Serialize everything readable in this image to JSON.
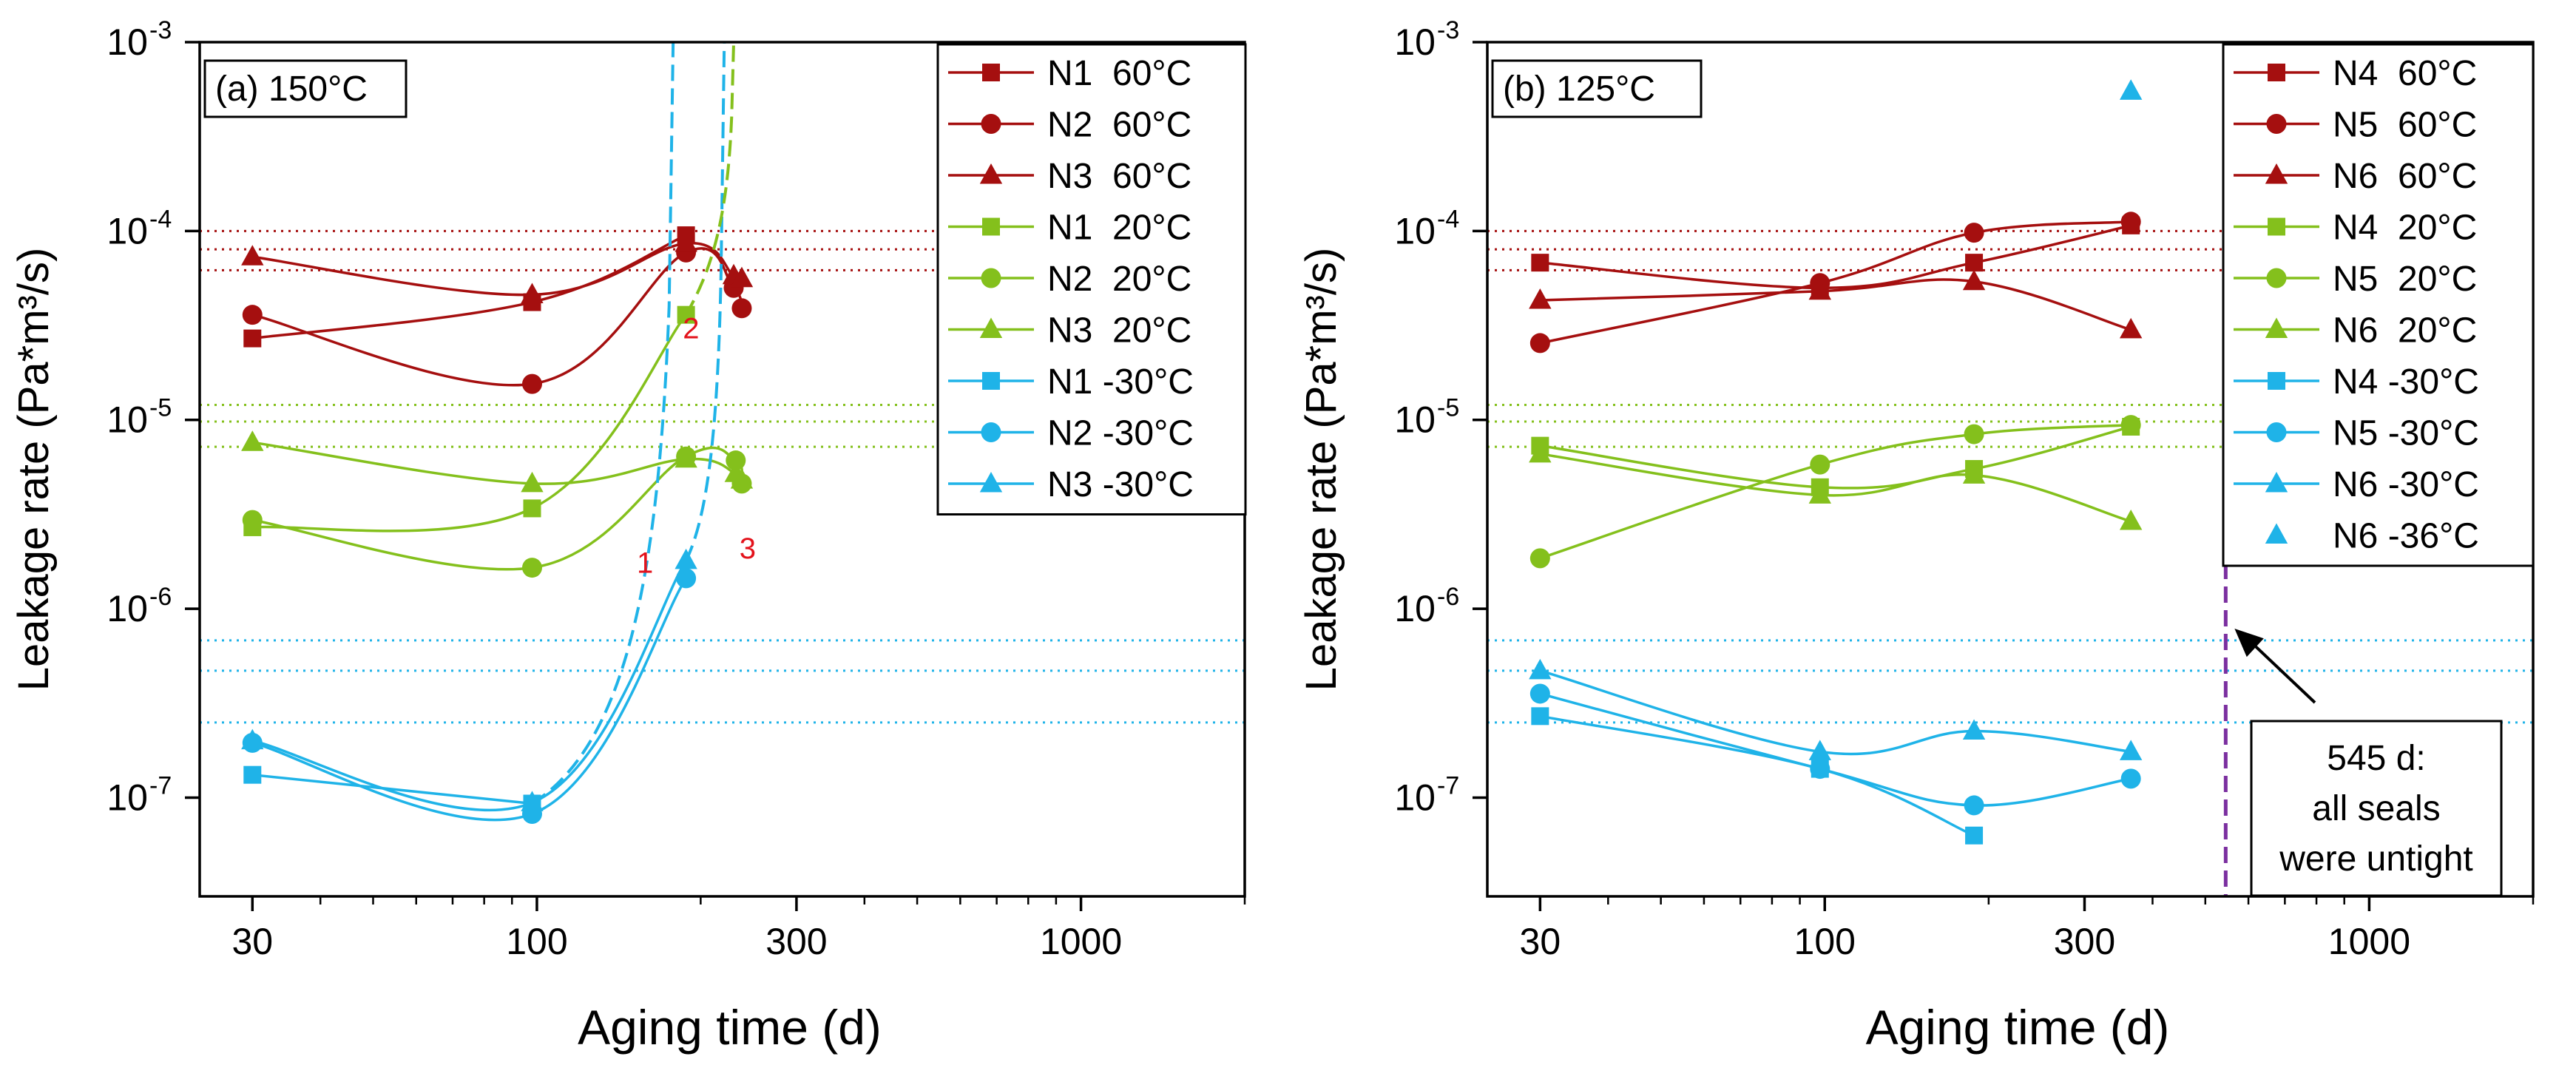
{
  "colors": {
    "red": "#a50f0f",
    "green": "#84c01c",
    "blue": "#1fb3e8",
    "purple": "#7b2fa0",
    "axis": "#000000"
  },
  "chart_data": [
    {
      "type": "scatter",
      "panel_label": "(a) 150°C",
      "xlabel": "Aging time (d)",
      "ylabel": "Leakage rate (Pa*m³/s)",
      "xscale": "log",
      "yscale": "log",
      "xlim": [
        24,
        2000
      ],
      "ylim": [
        3e-08,
        0.001
      ],
      "xticks": [
        30,
        100,
        300,
        1000
      ],
      "yticks": [
        {
          "exp": "-7",
          "value": 1e-07
        },
        {
          "exp": "-6",
          "value": 1e-06
        },
        {
          "exp": "-5",
          "value": 1e-05
        },
        {
          "exp": "-4",
          "value": 0.0001
        },
        {
          "exp": "-3",
          "value": 0.001
        }
      ],
      "tick_base": "10",
      "ref_lines": [
        {
          "color": "red",
          "values": [
            0.0001,
            8e-05,
            6.2e-05
          ]
        },
        {
          "color": "green",
          "values": [
            1.2e-05,
            9.8e-06,
            7.2e-06
          ]
        },
        {
          "color": "blue",
          "values": [
            6.8e-07,
            4.7e-07,
            2.5e-07
          ]
        }
      ],
      "annotations": [
        {
          "text": "1",
          "x": 158,
          "y": 1.55e-06
        },
        {
          "text": "2",
          "x": 192,
          "y": 2.7e-05
        },
        {
          "text": "3",
          "x": 244,
          "y": 1.85e-06
        }
      ],
      "series": [
        {
          "name": "N1  60°C",
          "color": "red",
          "marker": "square",
          "x": [
            30,
            98,
            188
          ],
          "y": [
            2.7e-05,
            4.2e-05,
            9.5e-05
          ]
        },
        {
          "name": "N2  60°C",
          "color": "red",
          "marker": "circle",
          "x": [
            30,
            98,
            188,
            230,
            238
          ],
          "y": [
            3.6e-05,
            1.55e-05,
            7.7e-05,
            5e-05,
            3.9e-05
          ]
        },
        {
          "name": "N3  60°C",
          "color": "red",
          "marker": "triangle",
          "x": [
            30,
            98,
            188,
            230,
            238
          ],
          "y": [
            7.3e-05,
            4.6e-05,
            8.6e-05,
            5.8e-05,
            5.6e-05
          ]
        },
        {
          "name": "N1  20°C",
          "color": "green",
          "marker": "square",
          "x": [
            30,
            98,
            188
          ],
          "y": [
            2.7e-06,
            3.4e-06,
            3.6e-05
          ]
        },
        {
          "name": "N2  20°C",
          "color": "green",
          "marker": "circle",
          "x": [
            30,
            98,
            188,
            232,
            238
          ],
          "y": [
            2.95e-06,
            1.65e-06,
            6.4e-06,
            6.1e-06,
            4.6e-06
          ]
        },
        {
          "name": "N3  20°C",
          "color": "green",
          "marker": "triangle",
          "x": [
            30,
            98,
            188,
            232,
            238
          ],
          "y": [
            7.6e-06,
            4.6e-06,
            6.2e-06,
            5.2e-06,
            4.8e-06
          ]
        },
        {
          "name": "N1 -30°C",
          "color": "blue",
          "marker": "square",
          "x": [
            30,
            98
          ],
          "y": [
            1.32e-07,
            9.3e-08
          ]
        },
        {
          "name": "N2 -30°C",
          "color": "blue",
          "marker": "circle",
          "x": [
            30,
            98,
            188
          ],
          "y": [
            1.95e-07,
            8.2e-08,
            1.45e-06
          ]
        },
        {
          "name": "N3 -30°C",
          "color": "blue",
          "marker": "triangle",
          "x": [
            30,
            98,
            188
          ],
          "y": [
            2e-07,
            9.4e-08,
            1.8e-06
          ]
        }
      ],
      "legend": [
        "N1  60°C",
        "N2  60°C",
        "N3  60°C",
        "N1  20°C",
        "N2  20°C",
        "N3  20°C",
        "N1 -30°C",
        "N2 -30°C",
        "N3 -30°C"
      ]
    },
    {
      "type": "scatter",
      "panel_label": "(b) 125°C",
      "xlabel": "Aging time (d)",
      "ylabel": "Leakage rate (Pa*m³/s)",
      "xscale": "log",
      "yscale": "log",
      "xlim": [
        24,
        2000
      ],
      "ylim": [
        3e-08,
        0.001
      ],
      "xticks": [
        30,
        100,
        300,
        1000
      ],
      "yticks": [
        {
          "exp": "-7",
          "value": 1e-07
        },
        {
          "exp": "-6",
          "value": 1e-06
        },
        {
          "exp": "-5",
          "value": 1e-05
        },
        {
          "exp": "-4",
          "value": 0.0001
        },
        {
          "exp": "-3",
          "value": 0.001
        }
      ],
      "tick_base": "10",
      "ref_lines": [
        {
          "color": "red",
          "values": [
            0.0001,
            8e-05,
            6.2e-05
          ]
        },
        {
          "color": "green",
          "values": [
            1.2e-05,
            9.8e-06,
            7.2e-06
          ]
        },
        {
          "color": "blue",
          "values": [
            6.8e-07,
            4.7e-07,
            2.5e-07
          ]
        }
      ],
      "vline": {
        "x": 545,
        "color": "purple"
      },
      "callout_lines": [
        "545 d:",
        "all seals",
        "were untight"
      ],
      "series": [
        {
          "name": "N4  60°C",
          "color": "red",
          "marker": "square",
          "x": [
            30,
            98,
            188,
            365
          ],
          "y": [
            6.8e-05,
            5e-05,
            6.8e-05,
            0.000107
          ]
        },
        {
          "name": "N5  60°C",
          "color": "red",
          "marker": "circle",
          "x": [
            30,
            98,
            188,
            365
          ],
          "y": [
            2.55e-05,
            5.3e-05,
            9.8e-05,
            0.000112
          ]
        },
        {
          "name": "N6  60°C",
          "color": "red",
          "marker": "triangle",
          "x": [
            30,
            98,
            188,
            365
          ],
          "y": [
            4.3e-05,
            4.8e-05,
            5.4e-05,
            3e-05
          ]
        },
        {
          "name": "N4  20°C",
          "color": "green",
          "marker": "square",
          "x": [
            30,
            98,
            188,
            365
          ],
          "y": [
            7.3e-06,
            4.4e-06,
            5.5e-06,
            9.2e-06
          ]
        },
        {
          "name": "N5  20°C",
          "color": "green",
          "marker": "circle",
          "x": [
            30,
            98,
            188,
            365
          ],
          "y": [
            1.85e-06,
            5.8e-06,
            8.4e-06,
            9.4e-06
          ]
        },
        {
          "name": "N6  20°C",
          "color": "green",
          "marker": "triangle",
          "x": [
            30,
            98,
            188,
            365
          ],
          "y": [
            6.6e-06,
            4e-06,
            5.1e-06,
            2.9e-06
          ]
        },
        {
          "name": "N4 -30°C",
          "color": "blue",
          "marker": "square",
          "x": [
            30,
            98,
            188
          ],
          "y": [
            2.7e-07,
            1.42e-07,
            6.3e-08
          ]
        },
        {
          "name": "N5 -30°C",
          "color": "blue",
          "marker": "circle",
          "x": [
            30,
            98,
            188,
            365
          ],
          "y": [
            3.55e-07,
            1.42e-07,
            9.1e-08,
            1.26e-07
          ]
        },
        {
          "name": "N6 -30°C",
          "color": "blue",
          "marker": "triangle",
          "x": [
            30,
            98,
            188,
            365
          ],
          "y": [
            4.7e-07,
            1.75e-07,
            2.25e-07,
            1.75e-07
          ]
        },
        {
          "name": "N6 -36°C",
          "color": "blue",
          "marker": "triangle",
          "nolegendline": true,
          "x": [
            365
          ],
          "y": [
            0.00055
          ]
        }
      ],
      "legend": [
        "N4  60°C",
        "N5  60°C",
        "N6  60°C",
        "N4  20°C",
        "N5  20°C",
        "N6  20°C",
        "N4 -30°C",
        "N5 -30°C",
        "N6 -30°C",
        "N6 -36°C"
      ]
    }
  ]
}
